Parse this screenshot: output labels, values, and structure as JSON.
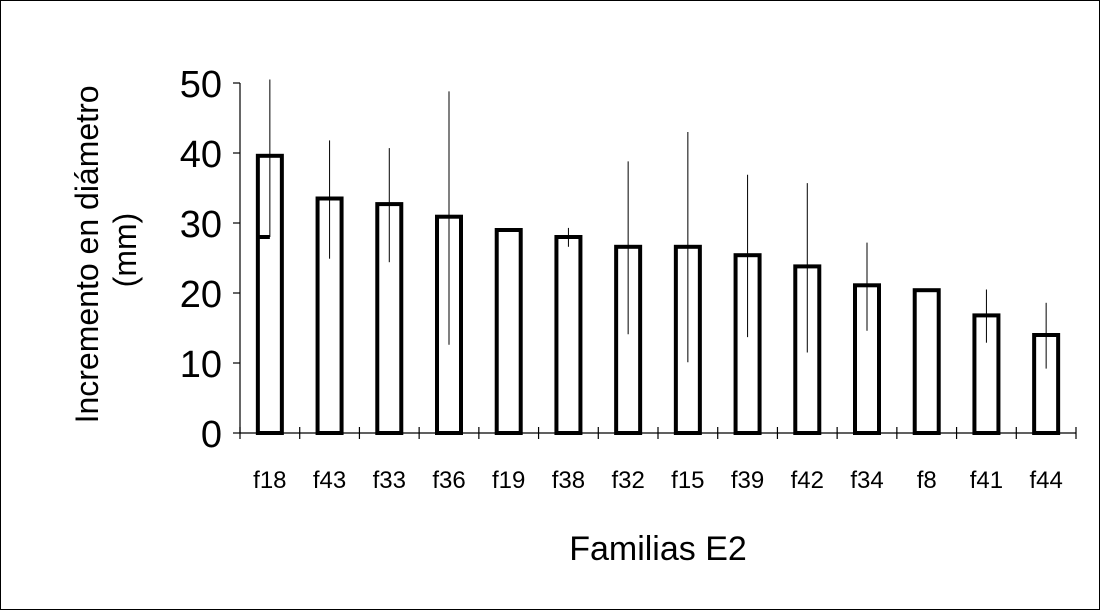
{
  "chart_data": {
    "type": "bar",
    "categories": [
      "f18",
      "f43",
      "f33",
      "f36",
      "f19",
      "f38",
      "f32",
      "f15",
      "f39",
      "f42",
      "f34",
      "f8",
      "f41",
      "f44"
    ],
    "values": [
      39.6,
      33.5,
      32.7,
      30.9,
      29.0,
      28.0,
      26.6,
      26.6,
      25.4,
      23.8,
      21.1,
      20.4,
      16.8,
      14.0
    ],
    "error_upper": [
      50.5,
      41.8,
      40.7,
      48.8,
      29.0,
      29.3,
      38.8,
      43.0,
      36.9,
      35.7,
      27.2,
      20.4,
      20.5,
      18.6
    ],
    "error_lower": [
      28.0,
      24.9,
      24.4,
      12.6,
      29.0,
      26.6,
      14.1,
      10.1,
      13.7,
      11.5,
      14.6,
      20.4,
      12.9,
      9.2
    ],
    "title": "",
    "xlabel": "Familias E2",
    "ylabel": "Incremento en diámetro (mm)",
    "ylabel_lines": [
      "Incremento en diámetro",
      "(mm)"
    ],
    "ylim": [
      0,
      50
    ],
    "yticks": [
      0,
      10,
      20,
      30,
      40,
      50
    ],
    "grid": false,
    "bar_fill": "#ffffff",
    "bar_stroke": "#000000"
  }
}
